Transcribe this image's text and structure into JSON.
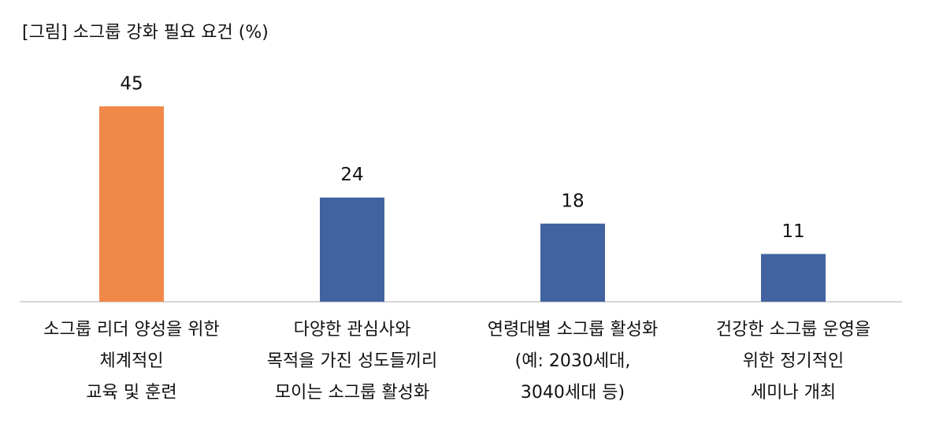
{
  "chart_data": {
    "type": "bar",
    "title": "[그림] 소그룹 강화 필요 요건 (%)",
    "categories": [
      [
        "소그룹 리더 양성을 위한",
        "체계적인",
        "교육 및 훈련"
      ],
      [
        "다양한 관심사와",
        "목적을 가진 성도들끼리",
        "모이는 소그룹 활성화"
      ],
      [
        "연령대별 소그룹 활성화",
        "(예: 2030세대,",
        "3040세대 등)"
      ],
      [
        "건강한 소그룹 운영을",
        "위한 정기적인",
        "세미나 개최"
      ]
    ],
    "values": [
      45,
      24,
      18,
      11
    ],
    "colors": [
      "#f0884a",
      "#4163a0",
      "#4163a0",
      "#4163a0"
    ]
  }
}
